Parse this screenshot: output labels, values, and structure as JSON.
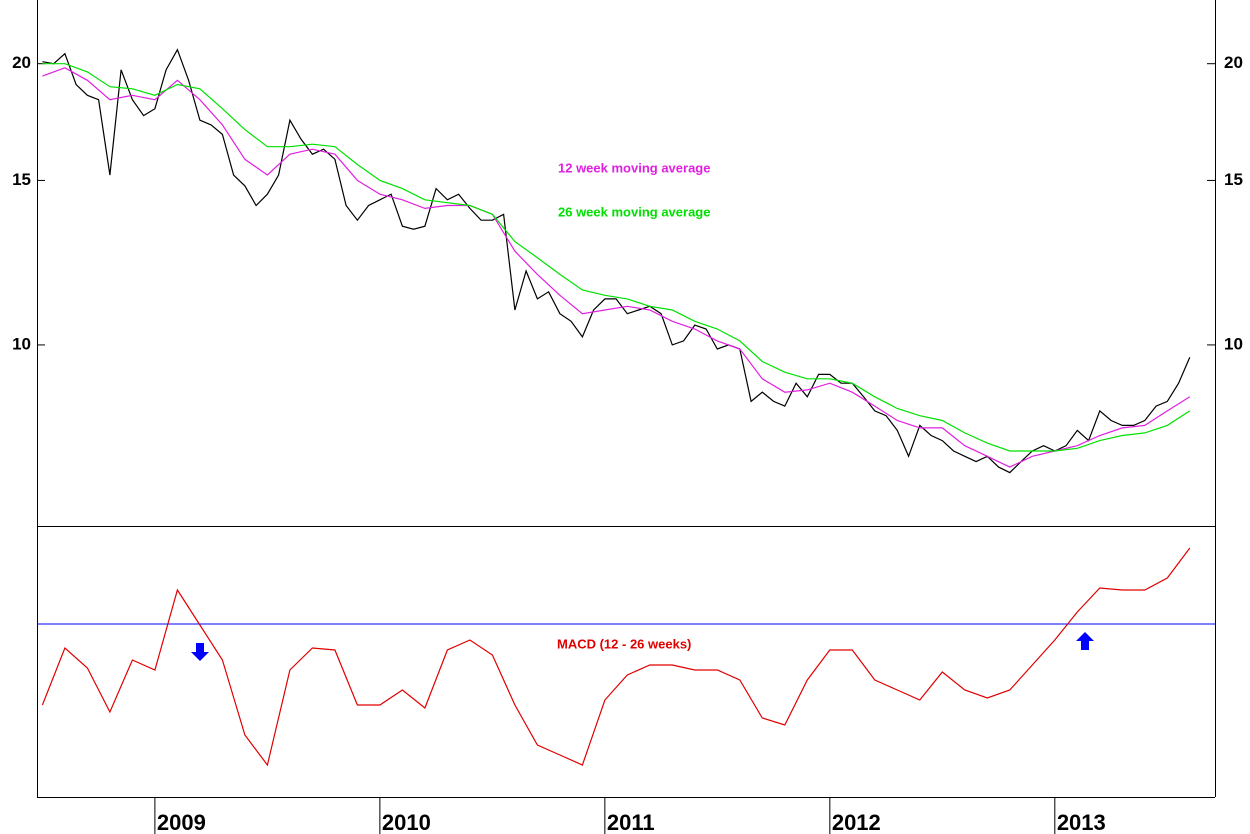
{
  "chart_data": [
    {
      "type": "line",
      "log_y": true,
      "xlim": [
        2008.476,
        2013.712
      ],
      "ylim": [
        6.4,
        23.4
      ],
      "yticks": [
        10,
        15,
        20
      ],
      "series": [
        {
          "color": "#000000",
          "x": [
            2008.5,
            2008.55,
            2008.6,
            2008.65,
            2008.7,
            2008.75,
            2008.8,
            2008.85,
            2008.9,
            2008.95,
            2009.0,
            2009.05,
            2009.1,
            2009.15,
            2009.2,
            2009.25,
            2009.3,
            2009.35,
            2009.4,
            2009.45,
            2009.5,
            2009.55,
            2009.6,
            2009.65,
            2009.7,
            2009.75,
            2009.8,
            2009.85,
            2009.9,
            2009.95,
            2010.0,
            2010.05,
            2010.1,
            2010.15,
            2010.2,
            2010.25,
            2010.3,
            2010.35,
            2010.4,
            2010.45,
            2010.5,
            2010.55,
            2010.6,
            2010.65,
            2010.7,
            2010.75,
            2010.8,
            2010.85,
            2010.9,
            2010.95,
            2011.0,
            2011.05,
            2011.1,
            2011.15,
            2011.2,
            2011.25,
            2011.3,
            2011.35,
            2011.4,
            2011.45,
            2011.5,
            2011.55,
            2011.6,
            2011.65,
            2011.7,
            2011.75,
            2011.8,
            2011.85,
            2011.9,
            2011.95,
            2012.0,
            2012.05,
            2012.1,
            2012.15,
            2012.2,
            2012.25,
            2012.3,
            2012.35,
            2012.4,
            2012.45,
            2012.5,
            2012.55,
            2012.6,
            2012.65,
            2012.7,
            2012.75,
            2012.8,
            2012.85,
            2012.9,
            2012.95,
            2013.0,
            2013.05,
            2013.1,
            2013.15,
            2013.2,
            2013.25,
            2013.3,
            2013.35,
            2013.4,
            2013.45,
            2013.5,
            2013.55,
            2013.6
          ],
          "values": [
            20.1,
            20.0,
            20.5,
            19.0,
            18.5,
            18.3,
            15.2,
            19.7,
            18.3,
            17.6,
            17.9,
            19.7,
            20.7,
            19.2,
            17.4,
            17.2,
            16.8,
            15.2,
            14.8,
            14.1,
            14.5,
            15.2,
            17.4,
            16.6,
            16.0,
            16.2,
            15.8,
            14.1,
            13.6,
            14.1,
            14.3,
            14.5,
            13.4,
            13.3,
            13.4,
            14.7,
            14.3,
            14.5,
            14.0,
            13.6,
            13.6,
            13.8,
            10.9,
            12.0,
            11.2,
            11.4,
            10.8,
            10.6,
            10.2,
            10.9,
            11.2,
            11.2,
            10.8,
            10.9,
            11.0,
            10.8,
            10.0,
            10.1,
            10.5,
            10.4,
            9.9,
            10.0,
            9.9,
            8.7,
            8.9,
            8.7,
            8.6,
            9.1,
            8.8,
            9.3,
            9.3,
            9.1,
            9.1,
            8.8,
            8.5,
            8.4,
            8.1,
            7.6,
            8.2,
            8.0,
            7.9,
            7.7,
            7.6,
            7.5,
            7.6,
            7.4,
            7.3,
            7.5,
            7.7,
            7.8,
            7.7,
            7.8,
            8.1,
            7.9,
            8.5,
            8.3,
            8.2,
            8.2,
            8.3,
            8.6,
            8.7,
            9.1,
            9.7
          ]
        },
        {
          "name": "12 week moving average",
          "color": "#e020e0",
          "x": [
            2008.5,
            2008.6,
            2008.7,
            2008.8,
            2008.9,
            2009.0,
            2009.1,
            2009.2,
            2009.3,
            2009.4,
            2009.5,
            2009.6,
            2009.7,
            2009.8,
            2009.9,
            2010.0,
            2010.1,
            2010.2,
            2010.3,
            2010.4,
            2010.5,
            2010.6,
            2010.7,
            2010.8,
            2010.9,
            2011.0,
            2011.1,
            2011.2,
            2011.3,
            2011.4,
            2011.5,
            2011.6,
            2011.7,
            2011.8,
            2011.9,
            2012.0,
            2012.1,
            2012.2,
            2012.3,
            2012.4,
            2012.5,
            2012.6,
            2012.7,
            2012.8,
            2012.9,
            2013.0,
            2013.1,
            2013.2,
            2013.3,
            2013.4,
            2013.5,
            2013.6
          ],
          "values": [
            19.4,
            19.8,
            19.2,
            18.3,
            18.5,
            18.3,
            19.2,
            18.3,
            17.2,
            15.8,
            15.2,
            16.0,
            16.2,
            16.0,
            15.0,
            14.5,
            14.3,
            14.0,
            14.1,
            14.1,
            13.8,
            12.6,
            11.9,
            11.3,
            10.8,
            10.9,
            11.0,
            10.9,
            10.6,
            10.4,
            10.1,
            9.9,
            9.2,
            8.9,
            8.95,
            9.1,
            8.9,
            8.6,
            8.3,
            8.15,
            8.15,
            7.8,
            7.6,
            7.4,
            7.6,
            7.7,
            7.8,
            8.0,
            8.15,
            8.2,
            8.5,
            8.8
          ]
        },
        {
          "name": "26 week moving average",
          "color": "#00e000",
          "x": [
            2008.5,
            2008.6,
            2008.7,
            2008.8,
            2008.9,
            2009.0,
            2009.1,
            2009.2,
            2009.3,
            2009.4,
            2009.5,
            2009.6,
            2009.7,
            2009.8,
            2009.9,
            2010.0,
            2010.1,
            2010.2,
            2010.3,
            2010.4,
            2010.5,
            2010.6,
            2010.7,
            2010.8,
            2010.9,
            2011.0,
            2011.1,
            2011.2,
            2011.3,
            2011.4,
            2011.5,
            2011.6,
            2011.7,
            2011.8,
            2011.9,
            2012.0,
            2012.1,
            2012.2,
            2012.3,
            2012.4,
            2012.5,
            2012.6,
            2012.7,
            2012.8,
            2012.9,
            2013.0,
            2013.1,
            2013.2,
            2013.3,
            2013.4,
            2013.5,
            2013.6
          ],
          "values": [
            20.0,
            20.0,
            19.6,
            18.9,
            18.8,
            18.5,
            19.0,
            18.8,
            17.9,
            17.0,
            16.3,
            16.3,
            16.4,
            16.3,
            15.6,
            15.0,
            14.7,
            14.3,
            14.2,
            14.1,
            13.8,
            12.9,
            12.4,
            11.9,
            11.45,
            11.3,
            11.2,
            11.0,
            10.9,
            10.6,
            10.4,
            10.1,
            9.6,
            9.35,
            9.2,
            9.2,
            9.1,
            8.8,
            8.55,
            8.4,
            8.3,
            8.05,
            7.85,
            7.7,
            7.7,
            7.7,
            7.75,
            7.9,
            8.0,
            8.05,
            8.2,
            8.5
          ]
        }
      ]
    },
    {
      "type": "line",
      "xlim": [
        2008.476,
        2013.712
      ],
      "ylim": [
        -1.73,
        0.97
      ],
      "xticks": [
        2009,
        2010,
        2011,
        2012,
        2013
      ],
      "reference_line": {
        "value": 0,
        "color": "#0000ff"
      },
      "series": [
        {
          "name": "MACD (12 - 26 weeks)",
          "color": "#e00000",
          "x": [
            2008.5,
            2008.6,
            2008.7,
            2008.8,
            2008.9,
            2009.0,
            2009.1,
            2009.2,
            2009.3,
            2009.4,
            2009.5,
            2009.6,
            2009.7,
            2009.8,
            2009.9,
            2010.0,
            2010.1,
            2010.2,
            2010.3,
            2010.4,
            2010.5,
            2010.6,
            2010.7,
            2010.8,
            2010.9,
            2011.0,
            2011.1,
            2011.2,
            2011.3,
            2011.4,
            2011.5,
            2011.6,
            2011.7,
            2011.8,
            2011.9,
            2012.0,
            2012.1,
            2012.2,
            2012.3,
            2012.4,
            2012.5,
            2012.6,
            2012.7,
            2012.8,
            2012.9,
            2013.0,
            2013.1,
            2013.2,
            2013.3,
            2013.4,
            2013.5,
            2013.6
          ],
          "values": [
            -0.81,
            -0.24,
            -0.44,
            -0.88,
            -0.36,
            -0.46,
            0.34,
            -0.01,
            -0.36,
            -1.11,
            -1.41,
            -0.46,
            -0.24,
            -0.26,
            -0.81,
            -0.81,
            -0.66,
            -0.84,
            -0.26,
            -0.16,
            -0.31,
            -0.81,
            -1.21,
            -1.31,
            -1.41,
            -0.76,
            -0.51,
            -0.41,
            -0.41,
            -0.46,
            -0.46,
            -0.56,
            -0.94,
            -1.01,
            -0.56,
            -0.26,
            -0.26,
            -0.56,
            -0.66,
            -0.76,
            -0.48,
            -0.66,
            -0.74,
            -0.66,
            -0.41,
            -0.16,
            0.12,
            0.36,
            0.34,
            0.34,
            0.46,
            0.76
          ]
        }
      ]
    }
  ]
}
